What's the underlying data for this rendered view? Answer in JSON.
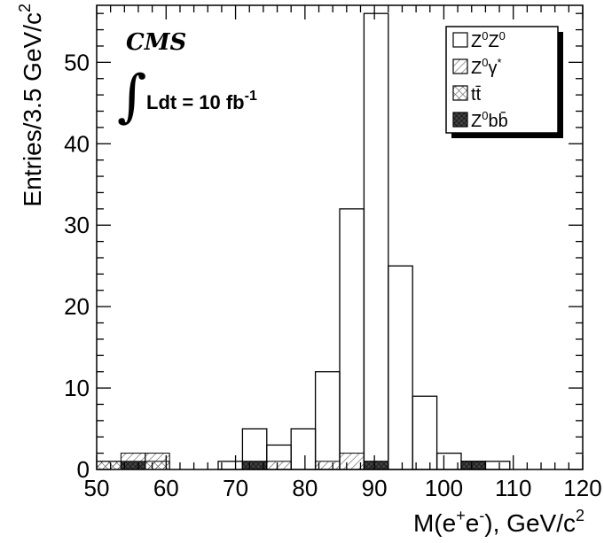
{
  "chart_data": {
    "type": "bar",
    "title": "",
    "experiment_label": "CMS",
    "luminosity": {
      "prefix": "Ldt = 10 fb",
      "superscript": "-1"
    },
    "xlabel": {
      "base": "M(e",
      "sup1": "+",
      "mid": "e",
      "sup2": "-",
      "tail": "), GeV/c",
      "sup3": "2"
    },
    "ylabel": {
      "base": "Entries/3.5 GeV/c",
      "sup": "2"
    },
    "xlim": [
      50,
      120
    ],
    "ylim": [
      0,
      57
    ],
    "bin_width": 3.5,
    "x_ticks": [
      50,
      60,
      70,
      80,
      90,
      100,
      110,
      120
    ],
    "y_ticks": [
      0,
      10,
      20,
      30,
      40,
      50
    ],
    "series": [
      {
        "name": "Z0Z0",
        "label": {
          "a": "Z",
          "a_sup": "0",
          "b": "Z",
          "b_sup": "0"
        },
        "style": "open",
        "bins": [
          {
            "x0": 67.5,
            "value": 1
          },
          {
            "x0": 71.0,
            "value": 5
          },
          {
            "x0": 74.5,
            "value": 3
          },
          {
            "x0": 78.0,
            "value": 5
          },
          {
            "x0": 81.5,
            "value": 12
          },
          {
            "x0": 85.0,
            "value": 32
          },
          {
            "x0": 88.5,
            "value": 56
          },
          {
            "x0": 92.0,
            "value": 25
          },
          {
            "x0": 95.5,
            "value": 9
          },
          {
            "x0": 99.0,
            "value": 2
          },
          {
            "x0": 102.5,
            "value": 1
          },
          {
            "x0": 106.0,
            "value": 1
          }
        ]
      },
      {
        "name": "Z0gamma*",
        "label": {
          "a": "Z",
          "a_sup": "0",
          "b": "γ",
          "b_sup": "*"
        },
        "style": "hatch",
        "bins": [
          {
            "x0": 50.0,
            "value": 1
          },
          {
            "x0": 53.5,
            "value": 2
          },
          {
            "x0": 57.0,
            "value": 2
          },
          {
            "x0": 71.0,
            "value": 1
          },
          {
            "x0": 74.5,
            "value": 1
          },
          {
            "x0": 81.5,
            "value": 1
          },
          {
            "x0": 85.0,
            "value": 2
          },
          {
            "x0": 88.5,
            "value": 1
          }
        ]
      },
      {
        "name": "ttbar",
        "label": {
          "a": "t",
          "b": "t̄"
        },
        "style": "crosshatch",
        "bins": [
          {
            "x0": 50.0,
            "value": 1
          },
          {
            "x0": 57.0,
            "value": 1
          }
        ]
      },
      {
        "name": "Z0bbbar",
        "label": {
          "a": "Z",
          "a_sup": "0",
          "b": "bb̄"
        },
        "style": "dark",
        "bins": [
          {
            "x0": 53.5,
            "value": 1
          },
          {
            "x0": 71.0,
            "value": 1
          },
          {
            "x0": 88.5,
            "value": 1
          },
          {
            "x0": 102.5,
            "value": 1
          }
        ]
      }
    ],
    "legend_position": "top-right",
    "colors": {
      "line": "#000000",
      "dark_fill": "#444444",
      "background": "#ffffff"
    }
  }
}
